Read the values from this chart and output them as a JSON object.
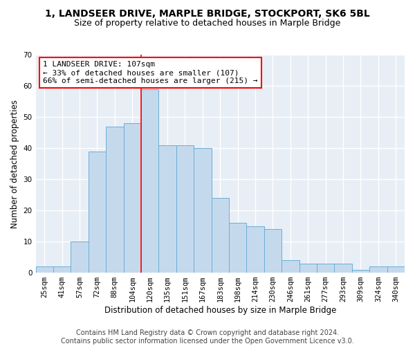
{
  "title": "1, LANDSEER DRIVE, MARPLE BRIDGE, STOCKPORT, SK6 5BL",
  "subtitle": "Size of property relative to detached houses in Marple Bridge",
  "xlabel": "Distribution of detached houses by size in Marple Bridge",
  "ylabel": "Number of detached properties",
  "footer1": "Contains HM Land Registry data © Crown copyright and database right 2024.",
  "footer2": "Contains public sector information licensed under the Open Government Licence v3.0.",
  "bar_labels": [
    "25sqm",
    "41sqm",
    "57sqm",
    "72sqm",
    "88sqm",
    "104sqm",
    "120sqm",
    "135sqm",
    "151sqm",
    "167sqm",
    "183sqm",
    "198sqm",
    "214sqm",
    "230sqm",
    "246sqm",
    "261sqm",
    "277sqm",
    "293sqm",
    "309sqm",
    "324sqm",
    "340sqm"
  ],
  "bar_values": [
    2,
    2,
    10,
    39,
    47,
    48,
    59,
    41,
    41,
    40,
    24,
    16,
    15,
    14,
    4,
    3,
    3,
    3,
    1,
    2,
    2
  ],
  "bar_color": "#c5d9ed",
  "bar_edge_color": "#6aaed6",
  "annotation_line1": "1 LANDSEER DRIVE: 107sqm",
  "annotation_line2": "← 33% of detached houses are smaller (107)",
  "annotation_line3": "66% of semi-detached houses are larger (215) →",
  "ylim": [
    0,
    70
  ],
  "yticks": [
    0,
    10,
    20,
    30,
    40,
    50,
    60,
    70
  ],
  "background_color": "#e8eef5",
  "grid_color": "#ffffff",
  "title_fontsize": 10,
  "subtitle_fontsize": 9,
  "axis_label_fontsize": 8.5,
  "tick_fontsize": 7.5,
  "annotation_fontsize": 8,
  "footer_fontsize": 7,
  "red_line_index": 5.5
}
